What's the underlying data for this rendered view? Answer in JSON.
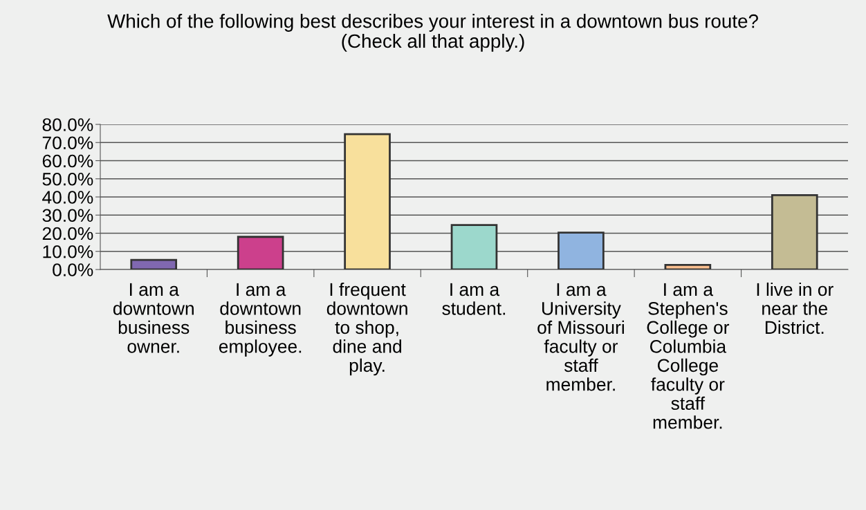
{
  "chart_data": {
    "type": "bar",
    "title": "Which of the following best describes your interest in a downtown bus route?\n(Check all that apply.)",
    "categories": [
      "I am a\ndowntown\nbusiness\nowner.",
      "I am a\ndowntown\nbusiness\nemployee.",
      "I frequent\ndowntown\nto shop,\ndine and\nplay.",
      "I am a\nstudent.",
      "I am a\nUniversity\nof Missouri\nfaculty or\nstaff\nmember.",
      "I am a\nStephen's\nCollege or\nColumbia\nCollege\nfaculty or\nstaff\nmember.",
      "I live in or\nnear the\nDistrict."
    ],
    "values": [
      5.3,
      18.0,
      74.6,
      24.5,
      20.3,
      2.5,
      41.0
    ],
    "colors": [
      "#8068b0",
      "#cc408c",
      "#f8e09c",
      "#9cd8cc",
      "#90b4e0",
      "#fcc090",
      "#c4bc94"
    ],
    "ylim": [
      0,
      80
    ],
    "yticks": [
      {
        "value": 0,
        "label": "0.0%"
      },
      {
        "value": 10,
        "label": "10.0%"
      },
      {
        "value": 20,
        "label": "20.0%"
      },
      {
        "value": 30,
        "label": "30.0%"
      },
      {
        "value": 40,
        "label": "40.0%"
      },
      {
        "value": 50,
        "label": "50.0%"
      },
      {
        "value": 60,
        "label": "60.0%"
      },
      {
        "value": 70,
        "label": "70.0%"
      },
      {
        "value": 80,
        "label": "80.0%"
      }
    ],
    "grid": "y"
  }
}
